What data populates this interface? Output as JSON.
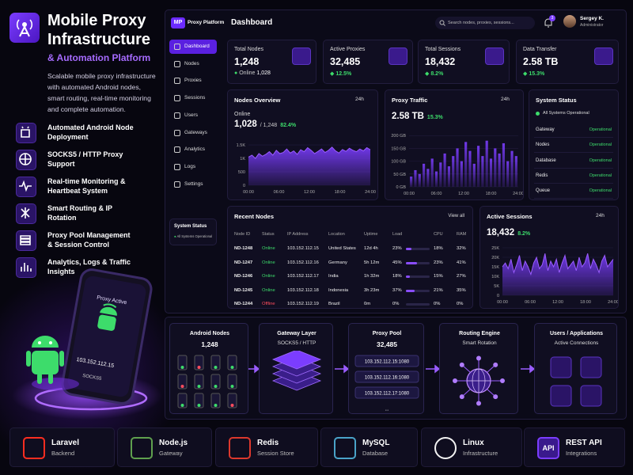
{
  "hero": {
    "title": "Mobile Proxy Infrastructure",
    "subtitle": "& Automation Platform",
    "description": "Scalable mobile proxy infrastructure with automated Android nodes, smart routing, real-time monitoring and complete automation.",
    "features": [
      "Automated Android Node Deployment",
      "SOCKS5 / HTTP Proxy Support",
      "Real-time Monitoring & Heartbeat System",
      "Smart Routing & IP Rotation",
      "Proxy Pool Management & Session Control",
      "Analytics, Logs & Traffic Insights"
    ],
    "phone": {
      "status": "Proxy Active",
      "ip": "103.152.112.15",
      "protocol": "SOCKS5"
    }
  },
  "sidebar": {
    "logo": "MP",
    "brand": "Proxy Platform",
    "menu": [
      "Dashboard",
      "Nodes",
      "Proxies",
      "Sessions",
      "Users",
      "Gateways",
      "Analytics",
      "Logs",
      "Settings"
    ],
    "status_title": "System Status",
    "status_text": "All Systems Operational"
  },
  "topbar": {
    "title": "Dashboard",
    "search": "Search nodes, proxies, sessions...",
    "notifications": "3",
    "user": "Sergey K.",
    "role": "Administrator"
  },
  "stats": [
    {
      "label": "Total Nodes",
      "value": "1,248",
      "note": "Online",
      "note_value": "1,028"
    },
    {
      "label": "Active Proxies",
      "value": "32,485",
      "change": "12.5%"
    },
    {
      "label": "Total Sessions",
      "value": "18,432",
      "change": "8.2%"
    },
    {
      "label": "Data Transfer",
      "value": "2.58 TB",
      "change": "15.3%"
    }
  ],
  "nodes_overview": {
    "type": "area",
    "title": "Nodes Overview",
    "range": "24h",
    "label": "Online",
    "value": "1,028",
    "total": "/ 1,248",
    "change": "82.4%",
    "color": "#7b3dff",
    "xlabels": [
      "00:00",
      "06:00",
      "12:00",
      "18:00",
      "24:00"
    ],
    "values": [
      1050,
      1120,
      1000,
      1180,
      1080,
      1150,
      1250,
      1120,
      1300,
      1180,
      1220,
      1350,
      1200,
      1280,
      1150,
      1320,
      1250,
      1400,
      1300,
      1180,
      1260,
      1350,
      1220,
      1300,
      1420,
      1280,
      1200,
      1330,
      1260,
      1380,
      1300,
      1250,
      1350,
      1280,
      1400,
      1320
    ],
    "ylim": [
      0,
      1650
    ],
    "yticks": [
      0,
      500,
      {
        "value": 1000,
        "label": "1K"
      },
      {
        "value": 1500,
        "label": "1.5K"
      }
    ]
  },
  "proxy_traffic": {
    "type": "bar",
    "title": "Proxy Traffic",
    "range": "24h",
    "value": "2.58 TB",
    "change": "15.3%",
    "color": "#7b3dff",
    "xlabels": [
      "00:00",
      "06:00",
      "12:00",
      "18:00",
      "24:00"
    ],
    "values": [
      40,
      65,
      50,
      90,
      70,
      110,
      60,
      95,
      130,
      80,
      120,
      150,
      100,
      175,
      140,
      90,
      160,
      120,
      180,
      110,
      150,
      130,
      170,
      100,
      140,
      120
    ],
    "ylim": [
      0,
      210
    ],
    "yticks": [
      {
        "value": 0,
        "label": "0 GB"
      },
      {
        "value": 50,
        "label": "50 GB"
      },
      {
        "value": 100,
        "label": "100 GB"
      },
      {
        "value": 150,
        "label": "150 GB"
      },
      {
        "value": 200,
        "label": "200 GB"
      }
    ]
  },
  "system_status": {
    "title": "System Status",
    "summary": "All Systems Operational",
    "items": [
      {
        "name": "Gateway",
        "status": "Operational"
      },
      {
        "name": "Nodes",
        "status": "Operational"
      },
      {
        "name": "Database",
        "status": "Operational"
      },
      {
        "name": "Redis",
        "status": "Operational"
      },
      {
        "name": "Queue",
        "status": "Operational"
      }
    ]
  },
  "recent_nodes": {
    "title": "Recent Nodes",
    "action": "View all",
    "columns": [
      "Node ID",
      "Status",
      "IP Address",
      "Location",
      "Uptime",
      "Load",
      "CPU",
      "RAM"
    ],
    "rows": [
      [
        "ND-1248",
        "Online",
        "103.152.112.15",
        "United States",
        "12d 4h",
        {
          "value": 23,
          "label": "23%"
        },
        "18%",
        "32%"
      ],
      [
        "ND-1247",
        "Online",
        "103.152.112.16",
        "Germany",
        "5h 12m",
        {
          "value": 45,
          "label": "45%"
        },
        "23%",
        "41%"
      ],
      [
        "ND-1246",
        "Online",
        "103.152.112.17",
        "India",
        "1h 32m",
        {
          "value": 18,
          "label": "18%"
        },
        "15%",
        "27%"
      ],
      [
        "ND-1245",
        "Online",
        "103.152.112.18",
        "Indonesia",
        "3h 23m",
        {
          "value": 37,
          "label": "37%"
        },
        "21%",
        "35%"
      ],
      [
        "ND-1244",
        "Offline",
        "103.152.112.19",
        "Brazil",
        "0m",
        {
          "value": 0,
          "label": "0%"
        },
        "0%",
        "0%"
      ]
    ]
  },
  "active_sessions": {
    "type": "area",
    "title": "Active Sessions",
    "range": "24h",
    "value": "18,432",
    "change": "8.2%",
    "color": "#7b3dff",
    "xlabels": [
      "00:00",
      "06:00",
      "12:00",
      "18:00",
      "24:00"
    ],
    "values": [
      15000,
      17000,
      14000,
      19000,
      12000,
      16000,
      21000,
      13000,
      18000,
      15000,
      11000,
      17000,
      20000,
      14000,
      16000,
      22000,
      13000,
      18000,
      15000,
      19000,
      12000,
      17000,
      21000,
      14000,
      16000,
      18000,
      13000,
      20000,
      15000,
      17000,
      22000,
      14000,
      19000,
      16000,
      12000,
      18000,
      21000,
      15000,
      17000,
      19000
    ],
    "ylim": [
      0,
      25000
    ],
    "yticks": [
      0,
      {
        "value": 5000,
        "label": "5K"
      },
      {
        "value": 10000,
        "label": "10K"
      },
      {
        "value": 15000,
        "label": "15K"
      },
      {
        "value": 20000,
        "label": "20K"
      },
      {
        "value": 25000,
        "label": "25K"
      }
    ]
  },
  "architecture": [
    {
      "title": "Android Nodes",
      "subtitle": "1,248"
    },
    {
      "title": "Gateway Layer",
      "subtitle": "SOCKS5 / HTTP"
    },
    {
      "title": "Proxy Pool",
      "subtitle": "32,485",
      "items": [
        "103.152.112.15:1080",
        "103.152.112.16:1080",
        "103.152.112.17:1080",
        "..."
      ]
    },
    {
      "title": "Routing Engine",
      "subtitle": "Smart Rotation"
    },
    {
      "title": "Users / Applications",
      "subtitle": "Active Connections"
    }
  ],
  "tech": [
    {
      "name": "Laravel",
      "role": "Backend"
    },
    {
      "name": "Node.js",
      "role": "Gateway"
    },
    {
      "name": "Redis",
      "role": "Session Store"
    },
    {
      "name": "MySQL",
      "role": "Database"
    },
    {
      "name": "Linux",
      "role": "Infrastructure"
    },
    {
      "name": "REST API",
      "role": "Integrations",
      "icon_text": "API"
    }
  ]
}
